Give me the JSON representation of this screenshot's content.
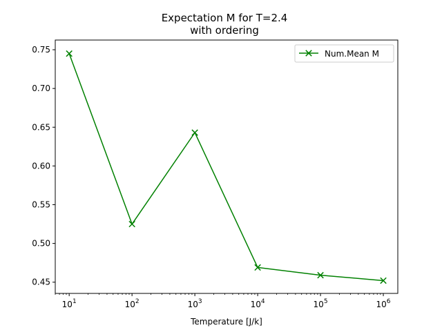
{
  "chart_data": {
    "type": "line",
    "title": "Expectation M for T=2.4",
    "subtitle": "with ordering",
    "xlabel": "Temperature [J/k]",
    "ylabel": "",
    "xscale": "log",
    "xlim": [
      6,
      1700000
    ],
    "ylim": [
      0.4355,
      0.7625
    ],
    "x_ticks": [
      10,
      100,
      1000,
      10000,
      100000,
      1000000
    ],
    "y_ticks": [
      0.45,
      0.5,
      0.55,
      0.6,
      0.65,
      0.7,
      0.75
    ],
    "y_tick_labels": [
      "0.45",
      "0.50",
      "0.55",
      "0.60",
      "0.65",
      "0.70",
      "0.75"
    ],
    "grid": false,
    "legend_position": "top-right",
    "series": [
      {
        "name": "Num.Mean M",
        "color": "#008000",
        "marker": "x",
        "x": [
          10,
          100,
          1000,
          10000,
          100000,
          1000000
        ],
        "y": [
          0.745,
          0.525,
          0.643,
          0.469,
          0.459,
          0.452
        ]
      }
    ]
  }
}
